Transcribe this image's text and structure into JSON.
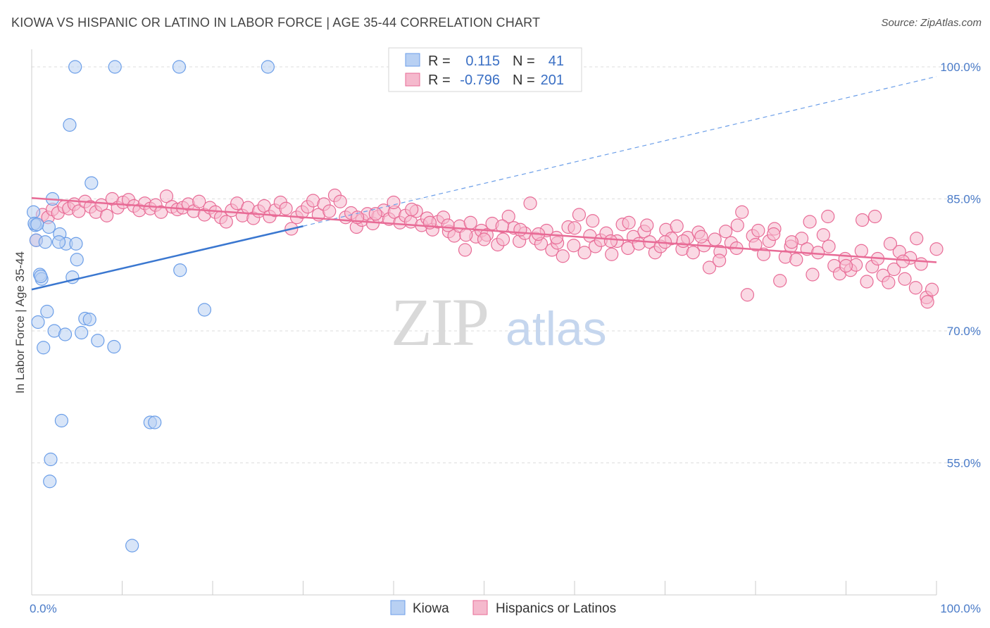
{
  "title": "KIOWA VS HISPANIC OR LATINO IN LABOR FORCE | AGE 35-44 CORRELATION CHART",
  "source": "Source: ZipAtlas.com",
  "watermark": {
    "zip": "ZIP",
    "atlas": "atlas"
  },
  "legend": {
    "r_label": "R =",
    "n_label": "N =",
    "rows": [
      {
        "r": "0.115",
        "n": "41"
      },
      {
        "r": "-0.796",
        "n": "201"
      }
    ]
  },
  "chart_data": {
    "type": "scatter",
    "ylabel": "In Labor Force | Age 35-44",
    "xlim": [
      0,
      100
    ],
    "ylim": [
      40,
      102
    ],
    "x_tick_labels": [
      "0.0%",
      "100.0%"
    ],
    "y_ticks": [
      {
        "value": 100,
        "label": "100.0%"
      },
      {
        "value": 85,
        "label": "85.0%"
      },
      {
        "value": 70,
        "label": "70.0%"
      },
      {
        "value": 55,
        "label": "55.0%"
      }
    ],
    "grid": true,
    "series": [
      {
        "name": "Kiowa",
        "color": "#6b9ee8",
        "fill": "#b8d0f3",
        "trend": {
          "x0": 0,
          "y0": 74.7,
          "x1": 30,
          "y1": 81.9,
          "dash_to_x": 100,
          "dash_to_y": 98.9
        },
        "points": [
          [
            0.2,
            83.5
          ],
          [
            0.4,
            82.0
          ],
          [
            0.5,
            80.3
          ],
          [
            0.7,
            71.0
          ],
          [
            0.9,
            76.4
          ],
          [
            1.1,
            75.9
          ],
          [
            1.3,
            68.1
          ],
          [
            1.5,
            80.1
          ],
          [
            1.7,
            72.2
          ],
          [
            1.9,
            81.8
          ],
          [
            2.1,
            55.4
          ],
          [
            2.3,
            85.0
          ],
          [
            2.5,
            70.0
          ],
          [
            2.0,
            52.9
          ],
          [
            3.1,
            81.0
          ],
          [
            3.3,
            59.8
          ],
          [
            3.7,
            69.6
          ],
          [
            3.8,
            79.9
          ],
          [
            4.2,
            93.4
          ],
          [
            4.5,
            76.1
          ],
          [
            4.8,
            100.0
          ],
          [
            5.0,
            78.1
          ],
          [
            5.5,
            69.8
          ],
          [
            5.9,
            71.4
          ],
          [
            6.4,
            71.3
          ],
          [
            6.6,
            86.8
          ],
          [
            7.3,
            68.9
          ],
          [
            9.2,
            100.0
          ],
          [
            9.1,
            68.2
          ],
          [
            11.1,
            45.6
          ],
          [
            13.1,
            59.6
          ],
          [
            13.6,
            59.6
          ],
          [
            16.3,
            100.0
          ],
          [
            16.4,
            76.9
          ],
          [
            19.1,
            72.4
          ],
          [
            26.1,
            100.0
          ],
          [
            0.3,
            82.2
          ],
          [
            0.6,
            82.1
          ],
          [
            1.0,
            76.2
          ],
          [
            4.9,
            79.9
          ],
          [
            3.0,
            80.1
          ]
        ]
      },
      {
        "name": "Hispanics or Latinos",
        "color": "#e86b96",
        "fill": "#f5b9cd",
        "trend": {
          "x0": 0,
          "y0": 85.1,
          "x1": 100,
          "y1": 77.8
        },
        "points": [
          [
            0.5,
            80.3
          ],
          [
            1.2,
            83.2
          ],
          [
            1.8,
            82.9
          ],
          [
            2.3,
            83.8
          ],
          [
            2.9,
            83.4
          ],
          [
            3.6,
            84.1
          ],
          [
            4.1,
            83.9
          ],
          [
            4.7,
            84.4
          ],
          [
            5.2,
            83.6
          ],
          [
            5.9,
            84.7
          ],
          [
            6.5,
            84.1
          ],
          [
            7.1,
            83.5
          ],
          [
            7.7,
            84.3
          ],
          [
            8.3,
            83.1
          ],
          [
            8.9,
            85.0
          ],
          [
            9.5,
            84.0
          ],
          [
            10.1,
            84.6
          ],
          [
            10.7,
            84.9
          ],
          [
            11.3,
            84.2
          ],
          [
            11.9,
            83.7
          ],
          [
            12.5,
            84.5
          ],
          [
            13.1,
            83.9
          ],
          [
            13.7,
            84.3
          ],
          [
            14.3,
            83.5
          ],
          [
            14.9,
            85.3
          ],
          [
            15.5,
            84.1
          ],
          [
            16.1,
            83.8
          ],
          [
            16.7,
            84.0
          ],
          [
            17.3,
            84.4
          ],
          [
            17.9,
            83.6
          ],
          [
            18.5,
            84.7
          ],
          [
            19.1,
            83.2
          ],
          [
            19.7,
            84.0
          ],
          [
            20.3,
            83.5
          ],
          [
            20.9,
            82.9
          ],
          [
            21.5,
            82.4
          ],
          [
            22.1,
            83.7
          ],
          [
            22.7,
            84.5
          ],
          [
            23.3,
            83.1
          ],
          [
            23.9,
            84.0
          ],
          [
            24.5,
            82.8
          ],
          [
            25.1,
            83.6
          ],
          [
            25.7,
            84.2
          ],
          [
            26.3,
            83.0
          ],
          [
            26.9,
            83.7
          ],
          [
            27.5,
            84.6
          ],
          [
            28.1,
            83.9
          ],
          [
            28.7,
            81.6
          ],
          [
            29.3,
            82.9
          ],
          [
            29.9,
            83.5
          ],
          [
            30.5,
            84.1
          ],
          [
            31.1,
            84.8
          ],
          [
            31.7,
            83.2
          ],
          [
            32.3,
            84.4
          ],
          [
            32.9,
            83.6
          ],
          [
            33.5,
            85.4
          ],
          [
            34.1,
            84.7
          ],
          [
            34.7,
            82.9
          ],
          [
            35.3,
            83.4
          ],
          [
            35.9,
            81.8
          ],
          [
            36.5,
            82.6
          ],
          [
            37.1,
            83.3
          ],
          [
            37.7,
            82.2
          ],
          [
            38.3,
            83.0
          ],
          [
            38.9,
            83.7
          ],
          [
            39.5,
            82.7
          ],
          [
            40.1,
            83.5
          ],
          [
            40.7,
            82.3
          ],
          [
            41.3,
            83.1
          ],
          [
            41.9,
            82.4
          ],
          [
            42.5,
            83.6
          ],
          [
            43.1,
            82.0
          ],
          [
            43.7,
            82.8
          ],
          [
            44.3,
            81.5
          ],
          [
            44.9,
            82.4
          ],
          [
            45.5,
            82.9
          ],
          [
            46.1,
            81.3
          ],
          [
            46.7,
            80.8
          ],
          [
            47.3,
            81.9
          ],
          [
            47.9,
            79.2
          ],
          [
            48.5,
            82.3
          ],
          [
            49.1,
            80.7
          ],
          [
            49.7,
            81.4
          ],
          [
            50.3,
            80.9
          ],
          [
            50.9,
            82.2
          ],
          [
            51.5,
            79.8
          ],
          [
            52.1,
            80.4
          ],
          [
            52.7,
            83.0
          ],
          [
            53.3,
            81.7
          ],
          [
            53.9,
            80.2
          ],
          [
            54.5,
            81.1
          ],
          [
            55.1,
            84.5
          ],
          [
            55.7,
            80.5
          ],
          [
            56.3,
            79.9
          ],
          [
            56.9,
            81.4
          ],
          [
            57.5,
            79.2
          ],
          [
            58.1,
            80.0
          ],
          [
            58.7,
            78.5
          ],
          [
            59.3,
            81.8
          ],
          [
            59.9,
            79.7
          ],
          [
            60.5,
            83.2
          ],
          [
            61.1,
            78.9
          ],
          [
            61.7,
            80.8
          ],
          [
            62.3,
            79.6
          ],
          [
            62.9,
            80.3
          ],
          [
            63.5,
            81.1
          ],
          [
            64.1,
            78.7
          ],
          [
            64.7,
            80.2
          ],
          [
            65.3,
            82.1
          ],
          [
            65.9,
            79.4
          ],
          [
            66.5,
            80.7
          ],
          [
            67.1,
            79.9
          ],
          [
            67.7,
            81.3
          ],
          [
            68.3,
            80.1
          ],
          [
            68.9,
            78.9
          ],
          [
            69.5,
            79.6
          ],
          [
            70.1,
            81.5
          ],
          [
            70.7,
            80.5
          ],
          [
            71.3,
            81.9
          ],
          [
            71.9,
            79.3
          ],
          [
            72.5,
            80.6
          ],
          [
            73.1,
            78.9
          ],
          [
            73.7,
            81.2
          ],
          [
            74.3,
            79.7
          ],
          [
            74.9,
            77.2
          ],
          [
            75.5,
            80.4
          ],
          [
            76.1,
            79.0
          ],
          [
            76.7,
            81.3
          ],
          [
            77.3,
            80.0
          ],
          [
            77.9,
            79.4
          ],
          [
            78.5,
            83.5
          ],
          [
            79.1,
            74.1
          ],
          [
            79.7,
            80.8
          ],
          [
            80.3,
            81.4
          ],
          [
            80.9,
            78.7
          ],
          [
            81.5,
            80.2
          ],
          [
            82.1,
            81.6
          ],
          [
            82.7,
            75.7
          ],
          [
            83.3,
            78.4
          ],
          [
            83.9,
            79.6
          ],
          [
            84.5,
            78.1
          ],
          [
            85.1,
            80.5
          ],
          [
            85.7,
            79.3
          ],
          [
            86.3,
            76.4
          ],
          [
            86.9,
            78.9
          ],
          [
            87.5,
            80.9
          ],
          [
            88.1,
            79.6
          ],
          [
            88.7,
            77.4
          ],
          [
            89.3,
            76.5
          ],
          [
            89.9,
            78.2
          ],
          [
            90.5,
            76.9
          ],
          [
            91.1,
            77.5
          ],
          [
            91.7,
            79.1
          ],
          [
            92.3,
            75.6
          ],
          [
            92.9,
            77.3
          ],
          [
            93.5,
            78.2
          ],
          [
            94.1,
            76.3
          ],
          [
            94.7,
            75.5
          ],
          [
            95.3,
            77.0
          ],
          [
            95.9,
            79.0
          ],
          [
            96.5,
            75.9
          ],
          [
            97.1,
            78.3
          ],
          [
            97.7,
            74.9
          ],
          [
            98.3,
            77.6
          ],
          [
            98.9,
            73.8
          ],
          [
            99.5,
            74.7
          ],
          [
            100.0,
            79.3
          ],
          [
            99.0,
            73.3
          ],
          [
            97.8,
            80.5
          ],
          [
            96.3,
            77.9
          ],
          [
            94.9,
            79.9
          ],
          [
            93.2,
            83.0
          ],
          [
            91.8,
            82.6
          ],
          [
            90.0,
            77.4
          ],
          [
            88.0,
            83.0
          ],
          [
            86.0,
            82.4
          ],
          [
            84.0,
            80.1
          ],
          [
            82.0,
            81.0
          ],
          [
            80.0,
            79.8
          ],
          [
            78.0,
            82.0
          ],
          [
            76.0,
            78.0
          ],
          [
            74.0,
            80.7
          ],
          [
            72.0,
            80.2
          ],
          [
            70.0,
            80.1
          ],
          [
            68.0,
            82.0
          ],
          [
            66.0,
            82.3
          ],
          [
            64.0,
            80.2
          ],
          [
            62.0,
            82.5
          ],
          [
            60.0,
            81.7
          ],
          [
            58.0,
            80.6
          ],
          [
            56.0,
            81.0
          ],
          [
            54.0,
            81.5
          ],
          [
            52.0,
            81.9
          ],
          [
            50.0,
            80.4
          ],
          [
            48.0,
            80.9
          ],
          [
            46.0,
            82.0
          ],
          [
            44.0,
            82.3
          ],
          [
            42.0,
            83.8
          ],
          [
            40.0,
            84.6
          ],
          [
            38.0,
            83.3
          ],
          [
            36.0,
            82.9
          ]
        ]
      }
    ]
  }
}
